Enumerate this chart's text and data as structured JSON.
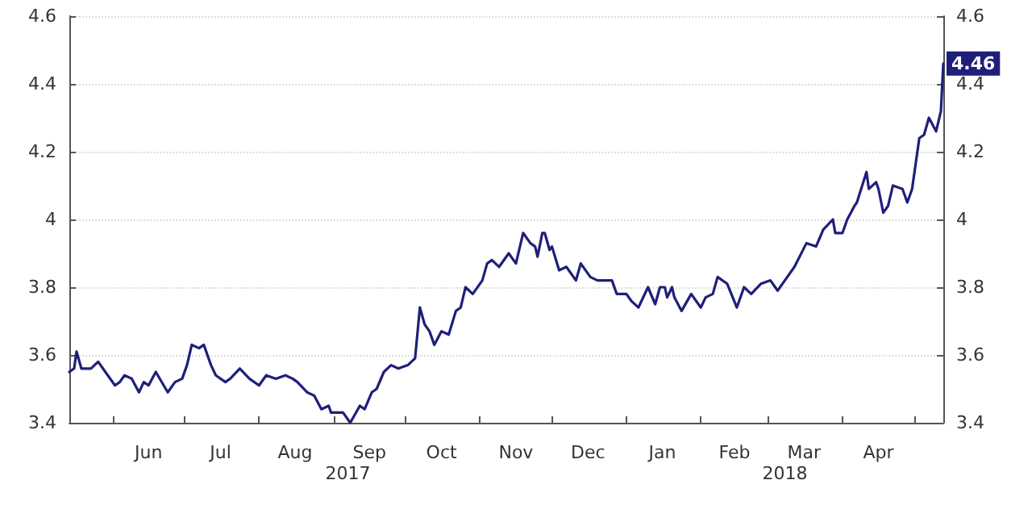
{
  "chart_data": {
    "type": "line",
    "grid": "y",
    "marker": "none",
    "line_style": "solid",
    "xlim": [
      "2017-05-14",
      "2018-05-13"
    ],
    "xticks": [
      {
        "value": "2017-06-01",
        "label": null
      },
      {
        "value": "2017-06-16",
        "label": "Jun"
      },
      {
        "value": "2017-07-01",
        "label": null
      },
      {
        "value": "2017-07-16",
        "label": "Jul"
      },
      {
        "value": "2017-08-01",
        "label": null
      },
      {
        "value": "2017-08-16",
        "label": "Aug"
      },
      {
        "value": "2017-09-01",
        "label": null
      },
      {
        "value": "2017-09-16",
        "label": "Sep"
      },
      {
        "value": "2017-10-01",
        "label": null
      },
      {
        "value": "2017-10-16",
        "label": "Oct"
      },
      {
        "value": "2017-11-01",
        "label": null
      },
      {
        "value": "2017-11-16",
        "label": "Nov"
      },
      {
        "value": "2017-12-01",
        "label": null
      },
      {
        "value": "2017-12-16",
        "label": "Dec"
      },
      {
        "value": "2018-01-01",
        "label": null
      },
      {
        "value": "2018-01-16",
        "label": "Jan"
      },
      {
        "value": "2018-02-01",
        "label": null
      },
      {
        "value": "2018-02-15",
        "label": "Feb"
      },
      {
        "value": "2018-03-01",
        "label": null
      },
      {
        "value": "2018-03-16",
        "label": "Mar"
      },
      {
        "value": "2018-04-01",
        "label": null
      },
      {
        "value": "2018-04-16",
        "label": "Apr"
      },
      {
        "value": "2018-05-01",
        "label": null
      }
    ],
    "ylim": [
      3.4,
      4.6
    ],
    "yticks": [
      3.4,
      3.6,
      3.8,
      4.0,
      4.2,
      4.4,
      4.6
    ],
    "y2lim": [
      3.4,
      4.6
    ],
    "y2ticks": [
      3.4,
      3.6,
      3.8,
      4.0,
      4.2,
      4.4,
      4.6
    ],
    "annotations": [
      "2017",
      "2018",
      {
        "text": "4.46",
        "x": "2018-05-13",
        "y": 4.46
      }
    ],
    "series": [
      {
        "color": "#1f1f7a",
        "x": [
          "2017-05-14",
          "2017-05-16",
          "2017-05-17",
          "2017-05-19",
          "2017-05-23",
          "2017-05-26",
          "2017-05-29",
          "2017-06-02",
          "2017-06-04",
          "2017-06-06",
          "2017-06-09",
          "2017-06-12",
          "2017-06-14",
          "2017-06-16",
          "2017-06-19",
          "2017-06-24",
          "2017-06-27",
          "2017-06-30",
          "2017-07-02",
          "2017-07-04",
          "2017-07-07",
          "2017-07-09",
          "2017-07-12",
          "2017-07-14",
          "2017-07-18",
          "2017-07-20",
          "2017-07-24",
          "2017-07-28",
          "2017-08-01",
          "2017-08-04",
          "2017-08-08",
          "2017-08-12",
          "2017-08-15",
          "2017-08-17",
          "2017-08-21",
          "2017-08-24",
          "2017-08-27",
          "2017-08-30",
          "2017-08-31",
          "2017-09-05",
          "2017-09-08",
          "2017-09-12",
          "2017-09-14",
          "2017-09-17",
          "2017-09-19",
          "2017-09-22",
          "2017-09-25",
          "2017-09-28",
          "2017-10-02",
          "2017-10-05",
          "2017-10-07",
          "2017-10-09",
          "2017-10-11",
          "2017-10-13",
          "2017-10-16",
          "2017-10-19",
          "2017-10-22",
          "2017-10-24",
          "2017-10-26",
          "2017-10-29",
          "2017-11-02",
          "2017-11-04",
          "2017-11-06",
          "2017-11-09",
          "2017-11-13",
          "2017-11-16",
          "2017-11-19",
          "2017-11-22",
          "2017-11-24",
          "2017-11-25",
          "2017-11-27",
          "2017-11-28",
          "2017-11-30",
          "2017-12-01",
          "2017-12-04",
          "2017-12-07",
          "2017-12-11",
          "2017-12-13",
          "2017-12-17",
          "2017-12-20",
          "2017-12-26",
          "2017-12-28",
          "2018-01-01",
          "2018-01-03",
          "2018-01-06",
          "2018-01-10",
          "2018-01-13",
          "2018-01-15",
          "2018-01-17",
          "2018-01-18",
          "2018-01-20",
          "2018-01-21",
          "2018-01-24",
          "2018-01-28",
          "2018-02-01",
          "2018-02-03",
          "2018-02-06",
          "2018-02-08",
          "2018-02-12",
          "2018-02-16",
          "2018-02-19",
          "2018-02-22",
          "2018-02-26",
          "2018-03-02",
          "2018-03-05",
          "2018-03-08",
          "2018-03-12",
          "2018-03-17",
          "2018-03-21",
          "2018-03-24",
          "2018-03-28",
          "2018-03-29",
          "2018-04-01",
          "2018-04-03",
          "2018-04-06",
          "2018-04-07",
          "2018-04-11",
          "2018-04-12",
          "2018-04-15",
          "2018-04-16",
          "2018-04-18",
          "2018-04-20",
          "2018-04-22",
          "2018-04-26",
          "2018-04-28",
          "2018-04-30",
          "2018-05-03",
          "2018-05-05",
          "2018-05-07",
          "2018-05-10",
          "2018-05-12",
          "2018-05-13"
        ],
        "values": [
          3.55,
          3.56,
          3.61,
          3.56,
          3.56,
          3.58,
          3.55,
          3.51,
          3.52,
          3.54,
          3.53,
          3.49,
          3.52,
          3.51,
          3.55,
          3.49,
          3.52,
          3.53,
          3.57,
          3.63,
          3.62,
          3.63,
          3.57,
          3.54,
          3.52,
          3.53,
          3.56,
          3.53,
          3.51,
          3.54,
          3.53,
          3.54,
          3.53,
          3.52,
          3.49,
          3.48,
          3.44,
          3.45,
          3.43,
          3.43,
          3.4,
          3.45,
          3.44,
          3.49,
          3.5,
          3.55,
          3.57,
          3.56,
          3.57,
          3.59,
          3.74,
          3.69,
          3.67,
          3.63,
          3.67,
          3.66,
          3.73,
          3.74,
          3.8,
          3.78,
          3.82,
          3.87,
          3.88,
          3.86,
          3.9,
          3.87,
          3.96,
          3.93,
          3.92,
          3.89,
          3.96,
          3.96,
          3.91,
          3.92,
          3.85,
          3.86,
          3.82,
          3.87,
          3.83,
          3.82,
          3.82,
          3.78,
          3.78,
          3.76,
          3.74,
          3.8,
          3.75,
          3.8,
          3.8,
          3.77,
          3.8,
          3.77,
          3.73,
          3.78,
          3.74,
          3.77,
          3.78,
          3.83,
          3.81,
          3.74,
          3.8,
          3.78,
          3.81,
          3.82,
          3.79,
          3.82,
          3.86,
          3.93,
          3.92,
          3.97,
          4.0,
          3.96,
          3.96,
          4.0,
          4.04,
          4.05,
          4.14,
          4.09,
          4.11,
          4.09,
          4.02,
          4.04,
          4.1,
          4.09,
          4.05,
          4.09,
          4.24,
          4.25,
          4.3,
          4.26,
          4.32,
          4.46
        ]
      }
    ]
  }
}
